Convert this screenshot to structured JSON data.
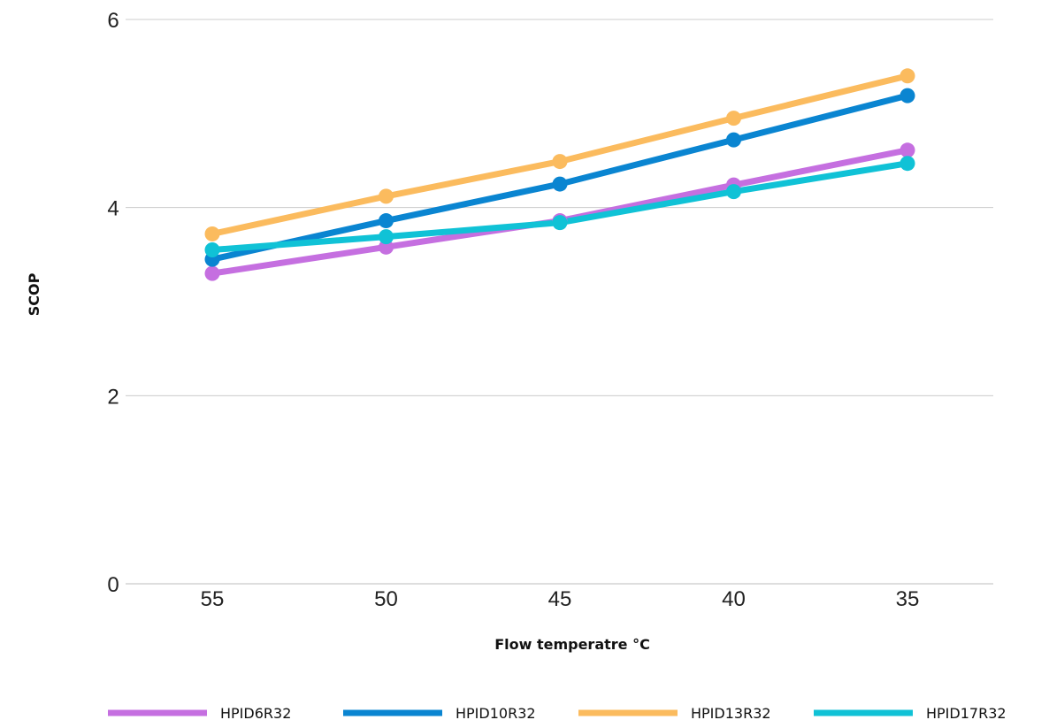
{
  "chart_data": {
    "type": "line",
    "title": "",
    "xlabel": "Flow temperatre °C",
    "ylabel": "SCOP",
    "categories": [
      "55",
      "50",
      "45",
      "40",
      "35"
    ],
    "ylim": [
      0,
      6
    ],
    "yticks": [
      0,
      2,
      4,
      6
    ],
    "grid": true,
    "legend_position": "bottom",
    "series": [
      {
        "name": "HPID6R32",
        "color": "#c56fe0",
        "values": [
          3.3,
          3.58,
          3.86,
          4.24,
          4.61
        ]
      },
      {
        "name": "HPID10R32",
        "color": "#0a85d1",
        "values": [
          3.45,
          3.86,
          4.25,
          4.72,
          5.19
        ]
      },
      {
        "name": "HPID13R32",
        "color": "#fbbb5e",
        "values": [
          3.72,
          4.12,
          4.49,
          4.95,
          5.4
        ]
      },
      {
        "name": "HPID17R32",
        "color": "#10c2d6",
        "values": [
          3.55,
          3.69,
          3.84,
          4.17,
          4.47
        ]
      }
    ]
  }
}
